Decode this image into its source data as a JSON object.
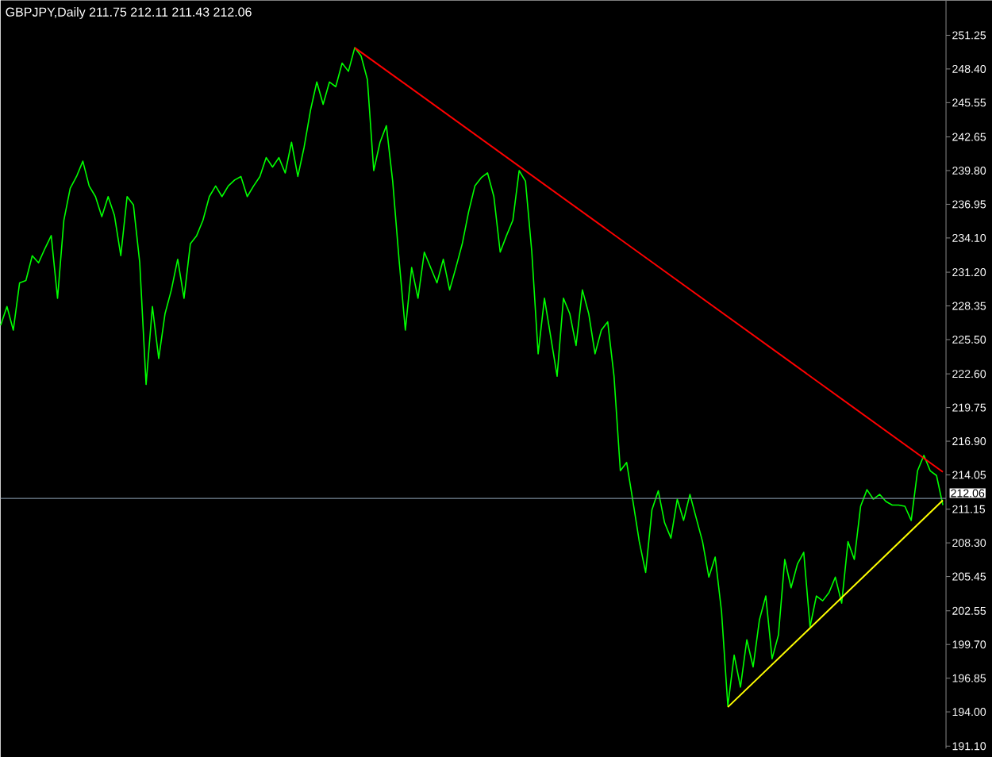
{
  "chart_data": {
    "type": "line",
    "title": "GBPJPY,Daily  211.75 212.11 211.43 212.06",
    "categories": [
      null,
      null,
      null,
      null,
      null,
      null,
      null,
      null,
      null,
      null,
      null,
      null,
      null,
      null,
      null,
      null,
      null,
      null,
      null,
      null,
      null,
      null,
      null,
      null,
      null,
      null,
      null,
      null,
      null,
      null,
      null,
      null,
      null,
      null,
      null,
      null,
      null,
      null,
      null,
      null,
      null,
      null,
      null,
      null,
      null,
      null,
      null,
      null,
      null,
      null,
      null,
      null,
      null,
      null,
      null,
      null,
      null,
      null,
      null,
      null,
      null,
      null,
      null,
      null,
      null,
      null,
      null,
      null,
      null,
      null,
      null,
      null,
      null,
      null,
      null,
      null,
      null,
      null,
      null,
      null,
      null,
      null,
      null,
      null,
      null,
      null,
      null,
      null,
      null,
      null,
      null,
      null,
      null,
      null,
      null,
      null,
      null,
      null,
      null,
      null,
      null,
      null,
      null,
      null,
      null,
      null,
      null,
      null,
      null,
      null,
      null,
      null,
      null,
      null,
      null,
      null,
      null,
      null,
      null,
      null,
      null,
      null,
      null,
      null,
      null,
      null,
      null,
      null,
      null,
      null,
      null,
      null,
      null,
      null,
      null,
      null,
      null,
      null,
      null,
      null,
      null,
      null,
      null,
      null,
      null,
      null,
      null,
      null,
      null,
      null
    ],
    "ylim": [
      190.9,
      254.2
    ],
    "yticks": [
      {
        "value": 191.1,
        "label": "191.10"
      },
      {
        "value": 194,
        "label": "194.00"
      },
      {
        "value": 196.85,
        "label": "196.85"
      },
      {
        "value": 199.7,
        "label": "199.70"
      },
      {
        "value": 202.55,
        "label": "202.55"
      },
      {
        "value": 205.45,
        "label": "205.45"
      },
      {
        "value": 208.3,
        "label": "208.30"
      },
      {
        "value": 211.15,
        "label": "211.15"
      },
      {
        "value": 214.05,
        "label": "214.05"
      },
      {
        "value": 216.9,
        "label": "216.90"
      },
      {
        "value": 219.75,
        "label": "219.75"
      },
      {
        "value": 222.6,
        "label": "222.60"
      },
      {
        "value": 225.5,
        "label": "225.50"
      },
      {
        "value": 228.35,
        "label": "228.35"
      },
      {
        "value": 231.2,
        "label": "231.20"
      },
      {
        "value": 234.1,
        "label": "234.10"
      },
      {
        "value": 236.95,
        "label": "236.95"
      },
      {
        "value": 239.8,
        "label": "239.80"
      },
      {
        "value": 242.65,
        "label": "242.65"
      },
      {
        "value": 245.55,
        "label": "245.55"
      },
      {
        "value": 248.4,
        "label": "248.40"
      },
      {
        "value": 251.25,
        "label": "251.25"
      }
    ],
    "tick_labels": "y",
    "series": [
      {
        "color": "#00ff00",
        "values": [
          226.7,
          228.3,
          226.3,
          230.3,
          230.5,
          232.6,
          232.0,
          233.2,
          234.3,
          229.0,
          235.6,
          238.3,
          239.3,
          240.6,
          238.5,
          237.6,
          235.9,
          237.6,
          236.0,
          232.6,
          237.6,
          236.9,
          232.0,
          221.7,
          228.3,
          223.9,
          227.7,
          229.7,
          232.3,
          229.0,
          233.6,
          234.3,
          235.6,
          237.6,
          238.5,
          237.6,
          238.5,
          239.0,
          239.3,
          237.6,
          238.5,
          239.3,
          240.9,
          240.1,
          240.9,
          239.6,
          242.2,
          239.3,
          241.8,
          244.9,
          247.3,
          245.4,
          247.3,
          246.9,
          248.9,
          248.2,
          250.2,
          249.5,
          247.5,
          239.8,
          242.2,
          243.6,
          238.9,
          232.3,
          226.3,
          231.6,
          229.0,
          232.9,
          231.6,
          230.3,
          232.3,
          229.7,
          231.6,
          233.6,
          236.3,
          238.5,
          239.2,
          239.6,
          237.6,
          232.9,
          234.3,
          235.6,
          239.8,
          238.9,
          232.9,
          224.3,
          229.0,
          225.7,
          222.4,
          229.0,
          227.7,
          225.0,
          229.7,
          227.7,
          224.3,
          226.3,
          227.0,
          222.4,
          214.4,
          215.1,
          211.8,
          208.4,
          205.8,
          211.1,
          212.7,
          210.0,
          208.7,
          212.0,
          210.2,
          212.4,
          210.4,
          208.4,
          205.4,
          207.1,
          202.5,
          194.5,
          198.8,
          196.1,
          200.1,
          197.8,
          201.8,
          203.8,
          198.5,
          200.5,
          206.9,
          204.5,
          206.5,
          207.5,
          201.2,
          203.8,
          203.4,
          204.1,
          205.4,
          203.2,
          208.4,
          206.9,
          211.4,
          212.8,
          212.0,
          212.4,
          211.8,
          211.5,
          211.5,
          211.4,
          210.2,
          214.4,
          215.7,
          214.4,
          214.0,
          211.5
        ]
      },
      {
        "color": "#ff0000",
        "values": [
          null,
          null,
          null,
          null,
          null,
          null,
          null,
          null,
          null,
          null,
          null,
          null,
          null,
          null,
          null,
          null,
          null,
          null,
          null,
          null,
          null,
          null,
          null,
          null,
          null,
          null,
          null,
          null,
          null,
          null,
          null,
          null,
          null,
          null,
          null,
          null,
          null,
          null,
          null,
          null,
          null,
          null,
          null,
          null,
          null,
          null,
          null,
          null,
          null,
          null,
          null,
          null,
          null,
          null,
          null,
          null,
          250.2,
          null,
          null,
          null,
          null,
          null,
          null,
          null,
          null,
          null,
          null,
          null,
          null,
          null,
          null,
          null,
          null,
          null,
          null,
          null,
          null,
          null,
          null,
          null,
          null,
          null,
          null,
          null,
          null,
          null,
          null,
          null,
          null,
          null,
          null,
          null,
          null,
          null,
          null,
          null,
          null,
          null,
          null,
          null,
          null,
          null,
          null,
          null,
          null,
          null,
          null,
          null,
          null,
          null,
          null,
          null,
          null,
          null,
          null,
          null,
          null,
          null,
          null,
          null,
          null,
          null,
          null,
          null,
          null,
          null,
          null,
          null,
          null,
          null,
          null,
          null,
          null,
          null,
          null,
          null,
          null,
          null,
          null,
          null,
          null,
          null,
          null,
          null,
          null,
          null,
          null,
          null,
          null,
          214.3
        ]
      },
      {
        "color": "#ffff00",
        "values": [
          null,
          null,
          null,
          null,
          null,
          null,
          null,
          null,
          null,
          null,
          null,
          null,
          null,
          null,
          null,
          null,
          null,
          null,
          null,
          null,
          null,
          null,
          null,
          null,
          null,
          null,
          null,
          null,
          null,
          null,
          null,
          null,
          null,
          null,
          null,
          null,
          null,
          null,
          null,
          null,
          null,
          null,
          null,
          null,
          null,
          null,
          null,
          null,
          null,
          null,
          null,
          null,
          null,
          null,
          null,
          null,
          null,
          null,
          null,
          null,
          null,
          null,
          null,
          null,
          null,
          null,
          null,
          null,
          null,
          null,
          null,
          null,
          null,
          null,
          null,
          null,
          null,
          null,
          null,
          null,
          null,
          null,
          null,
          null,
          null,
          null,
          null,
          null,
          null,
          null,
          null,
          null,
          null,
          null,
          null,
          null,
          null,
          null,
          null,
          null,
          null,
          null,
          null,
          null,
          null,
          null,
          null,
          null,
          null,
          null,
          null,
          null,
          null,
          null,
          null,
          194.4,
          null,
          null,
          null,
          null,
          null,
          null,
          null,
          null,
          null,
          null,
          null,
          null,
          null,
          null,
          null,
          null,
          null,
          null,
          null,
          null,
          null,
          null,
          null,
          null,
          null,
          null,
          null,
          null,
          null,
          null,
          null,
          null,
          null,
          211.9
        ]
      }
    ],
    "ref_lines": [
      {
        "axis": "y",
        "value": 212.06,
        "label": "212.06",
        "color": "#778899"
      }
    ]
  }
}
